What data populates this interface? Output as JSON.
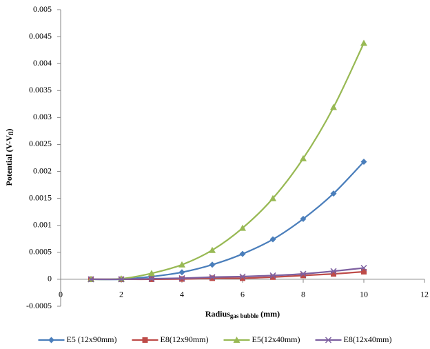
{
  "chart_data": {
    "type": "line",
    "y_label": {
      "main": "Potential (V-V",
      "sub": "fl",
      "end": ")"
    },
    "x_label": {
      "main": "Radius",
      "sub": "gas bubble",
      "end": "(mm)"
    },
    "xlim": [
      0,
      12
    ],
    "xticks": [
      0,
      2,
      4,
      6,
      8,
      10,
      12
    ],
    "ylim": [
      -0.0005,
      0.005
    ],
    "yticks": [
      -0.0005,
      0,
      0.0005,
      0.001,
      0.0015,
      0.002,
      0.0025,
      0.003,
      0.0035,
      0.004,
      0.0045,
      0.005
    ],
    "grid": false,
    "legend": "bottom",
    "x": [
      1,
      2,
      3,
      4,
      5,
      6,
      7,
      8,
      9,
      10
    ],
    "series": [
      {
        "name": "E5 (12x90mm)",
        "color": "#4a7ebb",
        "marker": "diamond",
        "values": [
          0,
          0,
          5e-05,
          0.00013,
          0.00027,
          0.00047,
          0.00074,
          0.00112,
          0.00159,
          0.00218
        ]
      },
      {
        "name": "E8(12x90mm)",
        "color": "#be4b48",
        "marker": "square",
        "values": [
          0,
          0,
          0,
          5e-06,
          2e-05,
          2e-05,
          4e-05,
          7e-05,
          0.0001,
          0.00014
        ]
      },
      {
        "name": "E5(12x40mm)",
        "color": "#98b954",
        "marker": "triangle",
        "values": [
          0,
          1e-05,
          0.00011,
          0.00027,
          0.00054,
          0.00095,
          0.0015,
          0.00224,
          0.00319,
          0.00438
        ]
      },
      {
        "name": "E8(12x40mm)",
        "color": "#7d60a0",
        "marker": "x",
        "values": [
          0,
          0,
          1e-05,
          2e-05,
          4e-05,
          5e-05,
          7e-05,
          0.0001,
          0.00015,
          0.00021
        ]
      }
    ]
  }
}
